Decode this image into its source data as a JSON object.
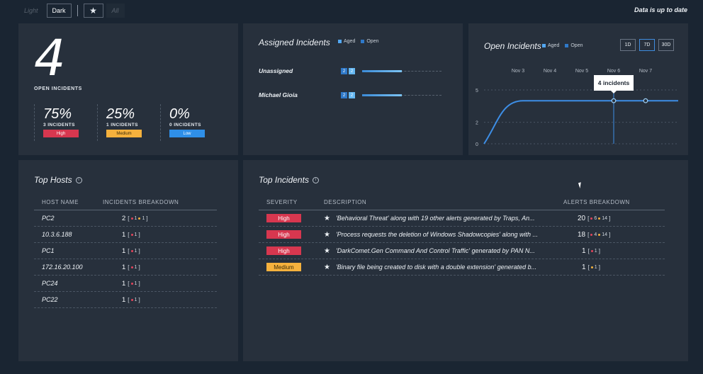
{
  "toolbar": {
    "light_label": "Light",
    "dark_label": "Dark",
    "star_label": "★",
    "all_label": "All",
    "status_text": "Data is up to date"
  },
  "open_incidents": {
    "count": "4",
    "label": "OPEN INCIDENTS",
    "severities": [
      {
        "pct": "75%",
        "count": "3 INCIDENTS",
        "label": "High"
      },
      {
        "pct": "25%",
        "count": "1 INCIDENTS",
        "label": "Medium"
      },
      {
        "pct": "0%",
        "count": "0 INCIDENTS",
        "label": "Low"
      }
    ]
  },
  "assigned": {
    "title": "Assigned Incidents",
    "legend": [
      "Aged",
      "Open"
    ],
    "rows": [
      {
        "name": "Unassigned",
        "aged": "2",
        "open": "2",
        "fill": 0.5
      },
      {
        "name": "Michael Gioia",
        "aged": "2",
        "open": "2",
        "fill": 0.5
      }
    ]
  },
  "chart": {
    "title": "Open Incidents",
    "legend": [
      "Aged",
      "Open"
    ],
    "ranges": [
      "1D",
      "7D",
      "30D"
    ],
    "tooltip": "4 incidents"
  },
  "chart_data": {
    "type": "line",
    "title": "Open Incidents",
    "x": [
      "Nov 3",
      "Nov 4",
      "Nov 5",
      "Nov 6",
      "Nov 7"
    ],
    "yticks": [
      "5",
      "2",
      "0"
    ],
    "ylim": [
      0,
      5
    ],
    "series": [
      {
        "name": "Open",
        "values": [
          4,
          4,
          4,
          4,
          4
        ]
      }
    ],
    "legend": [
      "Aged",
      "Open"
    ]
  },
  "hosts": {
    "title": "Top Hosts",
    "headers": [
      "HOST NAME",
      "INCIDENTS BREAKDOWN"
    ],
    "rows": [
      {
        "name": "PC2",
        "count": "2",
        "red": "1",
        "yellow": "1"
      },
      {
        "name": "10.3.6.188",
        "count": "1",
        "red": "1"
      },
      {
        "name": "PC1",
        "count": "1",
        "red": "1"
      },
      {
        "name": "172.16.20.100",
        "count": "1",
        "red": "1"
      },
      {
        "name": "PC24",
        "count": "1",
        "red": "1"
      },
      {
        "name": "PC22",
        "count": "1",
        "red": "1"
      }
    ]
  },
  "incidents": {
    "title": "Top Incidents",
    "headers": [
      "SEVERITY",
      "DESCRIPTION",
      "ALERTS BREAKDOWN"
    ],
    "rows": [
      {
        "severity": "High",
        "description": "'Behavioral Threat' along with 19 other alerts generated by Traps, An...",
        "count": "20",
        "red": "6",
        "yellow": "14"
      },
      {
        "severity": "High",
        "description": "'Process requests the deletion of Windows Shadowcopies' along with ...",
        "count": "18",
        "red": "4",
        "yellow": "14"
      },
      {
        "severity": "High",
        "description": "'DarkComet.Gen Command And Control Traffic' generated by PAN N...",
        "count": "1",
        "red": "1"
      },
      {
        "severity": "Medium",
        "description": "'Binary file being created to disk with a double extension' generated b...",
        "count": "1",
        "yellow": "1"
      }
    ]
  },
  "colors": {
    "background": "#1a2532",
    "panel": "#27303c",
    "high": "#d7374f",
    "medium": "#f5b13d",
    "low": "#2f8fe8",
    "line": "#3d8ee6"
  }
}
